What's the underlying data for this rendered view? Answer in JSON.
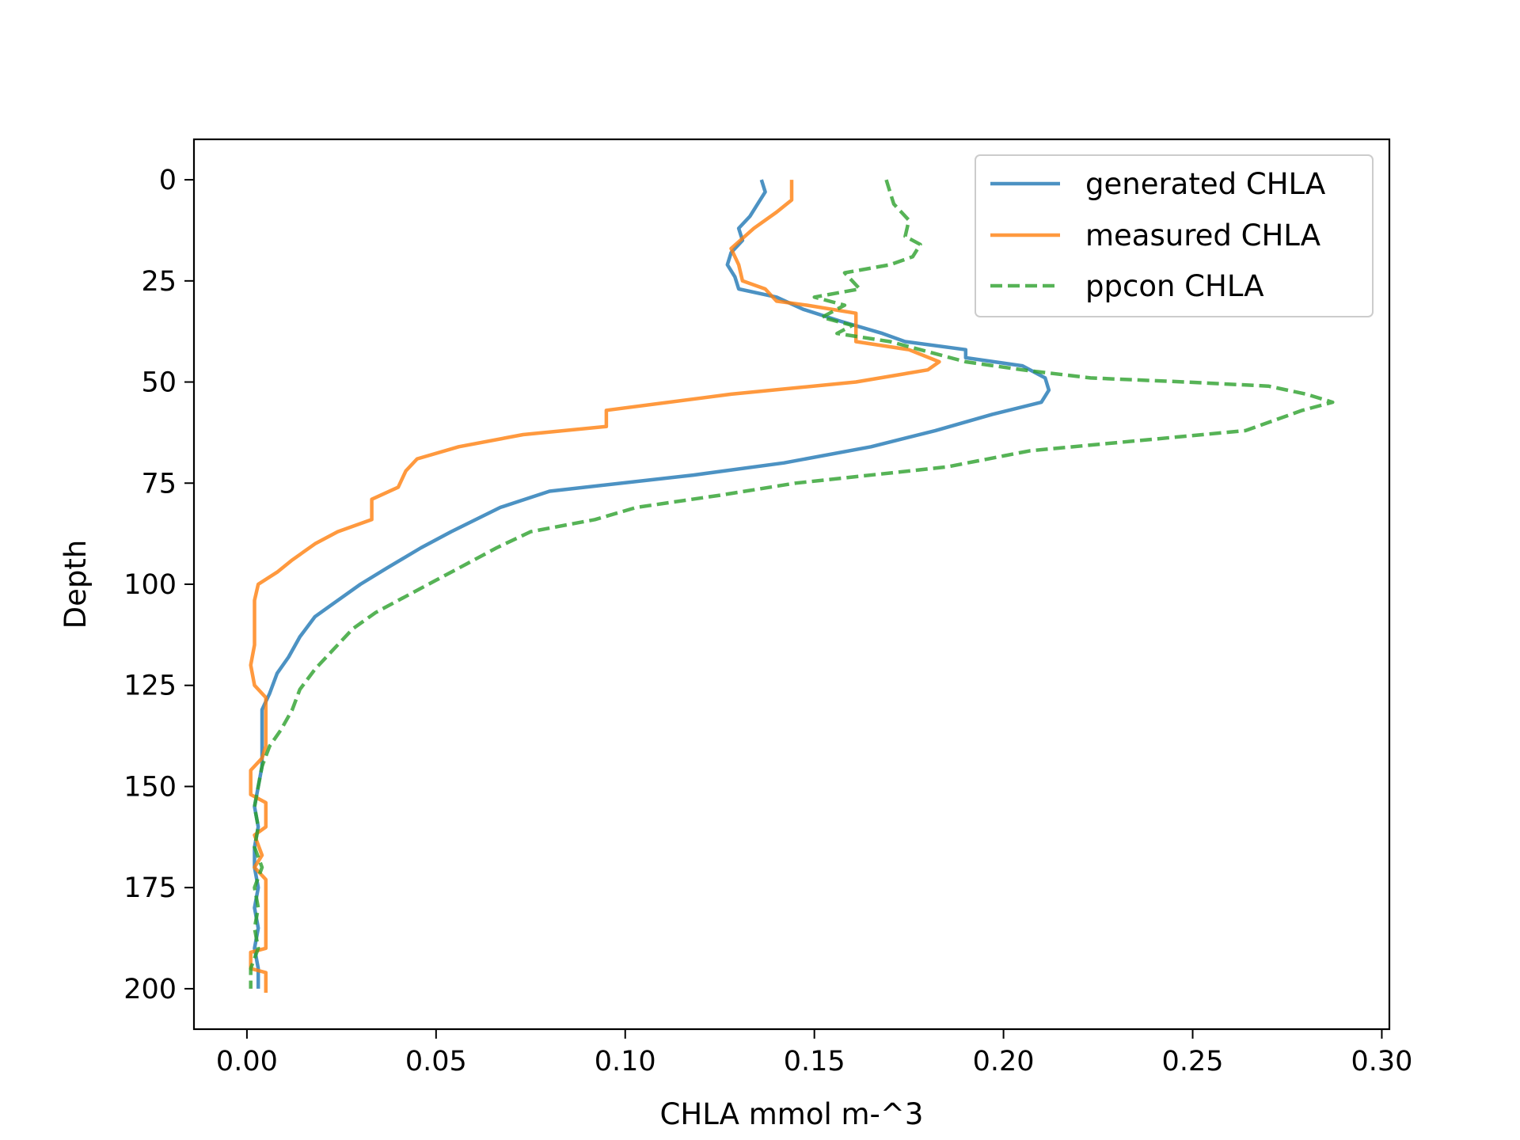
{
  "chart_data": {
    "type": "line",
    "title": "",
    "xlabel": "CHLA mmol m-^3",
    "ylabel": "Depth",
    "xlim": [
      -0.014,
      0.302
    ],
    "ylim": [
      210,
      -10
    ],
    "y_inverted": true,
    "grid": false,
    "legend_position": "upper right",
    "xticks": [
      0.0,
      0.05,
      0.1,
      0.15,
      0.2,
      0.25,
      0.3
    ],
    "xtick_labels": [
      "0.00",
      "0.05",
      "0.10",
      "0.15",
      "0.20",
      "0.25",
      "0.30"
    ],
    "yticks": [
      0,
      25,
      50,
      75,
      100,
      125,
      150,
      175,
      200
    ],
    "ytick_labels": [
      "0",
      "25",
      "50",
      "75",
      "100",
      "125",
      "150",
      "175",
      "200"
    ],
    "series": [
      {
        "name": "generated CHLA",
        "color": "#1f77b4",
        "style": "solid",
        "points": [
          [
            0.136,
            0
          ],
          [
            0.137,
            3
          ],
          [
            0.135,
            6
          ],
          [
            0.133,
            9
          ],
          [
            0.13,
            12
          ],
          [
            0.131,
            15
          ],
          [
            0.128,
            18
          ],
          [
            0.127,
            21
          ],
          [
            0.129,
            24
          ],
          [
            0.13,
            27
          ],
          [
            0.14,
            29
          ],
          [
            0.147,
            32
          ],
          [
            0.157,
            35
          ],
          [
            0.168,
            38
          ],
          [
            0.174,
            40
          ],
          [
            0.19,
            42
          ],
          [
            0.19,
            44
          ],
          [
            0.205,
            46
          ],
          [
            0.211,
            49
          ],
          [
            0.212,
            52
          ],
          [
            0.21,
            55
          ],
          [
            0.197,
            58
          ],
          [
            0.182,
            62
          ],
          [
            0.165,
            66
          ],
          [
            0.142,
            70
          ],
          [
            0.118,
            73
          ],
          [
            0.08,
            77
          ],
          [
            0.067,
            81
          ],
          [
            0.054,
            87
          ],
          [
            0.046,
            91
          ],
          [
            0.037,
            96
          ],
          [
            0.03,
            100
          ],
          [
            0.024,
            104
          ],
          [
            0.018,
            108
          ],
          [
            0.014,
            113
          ],
          [
            0.011,
            118
          ],
          [
            0.008,
            122
          ],
          [
            0.006,
            127
          ],
          [
            0.004,
            131
          ],
          [
            0.004,
            135
          ],
          [
            0.004,
            140
          ],
          [
            0.004,
            145
          ],
          [
            0.003,
            150
          ],
          [
            0.002,
            155
          ],
          [
            0.003,
            160
          ],
          [
            0.002,
            165
          ],
          [
            0.002,
            170
          ],
          [
            0.003,
            175
          ],
          [
            0.002,
            180
          ],
          [
            0.003,
            185
          ],
          [
            0.002,
            190
          ],
          [
            0.003,
            195
          ],
          [
            0.003,
            200
          ]
        ]
      },
      {
        "name": "measured CHLA",
        "color": "#ff7f0e",
        "style": "solid",
        "points": [
          [
            0.144,
            0
          ],
          [
            0.144,
            5
          ],
          [
            0.14,
            8
          ],
          [
            0.134,
            12
          ],
          [
            0.128,
            17
          ],
          [
            0.13,
            21
          ],
          [
            0.131,
            25
          ],
          [
            0.137,
            27
          ],
          [
            0.14,
            30
          ],
          [
            0.148,
            31
          ],
          [
            0.161,
            33
          ],
          [
            0.161,
            36
          ],
          [
            0.161,
            40
          ],
          [
            0.175,
            42
          ],
          [
            0.183,
            45
          ],
          [
            0.18,
            47
          ],
          [
            0.161,
            50
          ],
          [
            0.128,
            53
          ],
          [
            0.095,
            57
          ],
          [
            0.095,
            61
          ],
          [
            0.073,
            63
          ],
          [
            0.056,
            66
          ],
          [
            0.045,
            69
          ],
          [
            0.042,
            72
          ],
          [
            0.04,
            76
          ],
          [
            0.033,
            79
          ],
          [
            0.033,
            84
          ],
          [
            0.024,
            87
          ],
          [
            0.018,
            90
          ],
          [
            0.012,
            94
          ],
          [
            0.008,
            97
          ],
          [
            0.003,
            100
          ],
          [
            0.002,
            104
          ],
          [
            0.002,
            110
          ],
          [
            0.002,
            115
          ],
          [
            0.001,
            120
          ],
          [
            0.002,
            125
          ],
          [
            0.005,
            128
          ],
          [
            0.005,
            135
          ],
          [
            0.005,
            140
          ],
          [
            0.004,
            143
          ],
          [
            0.001,
            146
          ],
          [
            0.001,
            152
          ],
          [
            0.005,
            154
          ],
          [
            0.005,
            160
          ],
          [
            0.002,
            162
          ],
          [
            0.004,
            167
          ],
          [
            0.002,
            170
          ],
          [
            0.005,
            173
          ],
          [
            0.005,
            180
          ],
          [
            0.005,
            190
          ],
          [
            0.001,
            191
          ],
          [
            0.001,
            195
          ],
          [
            0.005,
            196
          ],
          [
            0.005,
            201
          ]
        ]
      },
      {
        "name": "ppcon CHLA",
        "color": "#2ca02c",
        "style": "dashed",
        "points": [
          [
            0.169,
            0
          ],
          [
            0.17,
            3
          ],
          [
            0.171,
            6
          ],
          [
            0.175,
            10
          ],
          [
            0.174,
            14
          ],
          [
            0.178,
            16
          ],
          [
            0.176,
            19
          ],
          [
            0.17,
            21
          ],
          [
            0.158,
            23
          ],
          [
            0.16,
            25
          ],
          [
            0.162,
            27
          ],
          [
            0.15,
            29
          ],
          [
            0.158,
            31
          ],
          [
            0.152,
            34
          ],
          [
            0.16,
            36
          ],
          [
            0.156,
            38
          ],
          [
            0.17,
            40
          ],
          [
            0.178,
            42
          ],
          [
            0.19,
            45
          ],
          [
            0.205,
            47
          ],
          [
            0.223,
            49
          ],
          [
            0.248,
            50
          ],
          [
            0.27,
            51
          ],
          [
            0.28,
            53
          ],
          [
            0.287,
            55
          ],
          [
            0.279,
            57
          ],
          [
            0.264,
            62
          ],
          [
            0.207,
            67
          ],
          [
            0.185,
            71
          ],
          [
            0.145,
            75
          ],
          [
            0.125,
            78
          ],
          [
            0.103,
            81
          ],
          [
            0.092,
            84
          ],
          [
            0.075,
            87
          ],
          [
            0.066,
            91
          ],
          [
            0.058,
            95
          ],
          [
            0.05,
            99
          ],
          [
            0.042,
            103
          ],
          [
            0.034,
            107
          ],
          [
            0.028,
            111
          ],
          [
            0.023,
            116
          ],
          [
            0.018,
            121
          ],
          [
            0.014,
            126
          ],
          [
            0.012,
            131
          ],
          [
            0.009,
            136
          ],
          [
            0.006,
            140
          ],
          [
            0.004,
            145
          ],
          [
            0.003,
            150
          ],
          [
            0.002,
            155
          ],
          [
            0.003,
            160
          ],
          [
            0.002,
            165
          ],
          [
            0.004,
            170
          ],
          [
            0.002,
            175
          ],
          [
            0.003,
            180
          ],
          [
            0.002,
            185
          ],
          [
            0.003,
            190
          ],
          [
            0.001,
            195
          ],
          [
            0.001,
            200
          ]
        ]
      }
    ]
  }
}
